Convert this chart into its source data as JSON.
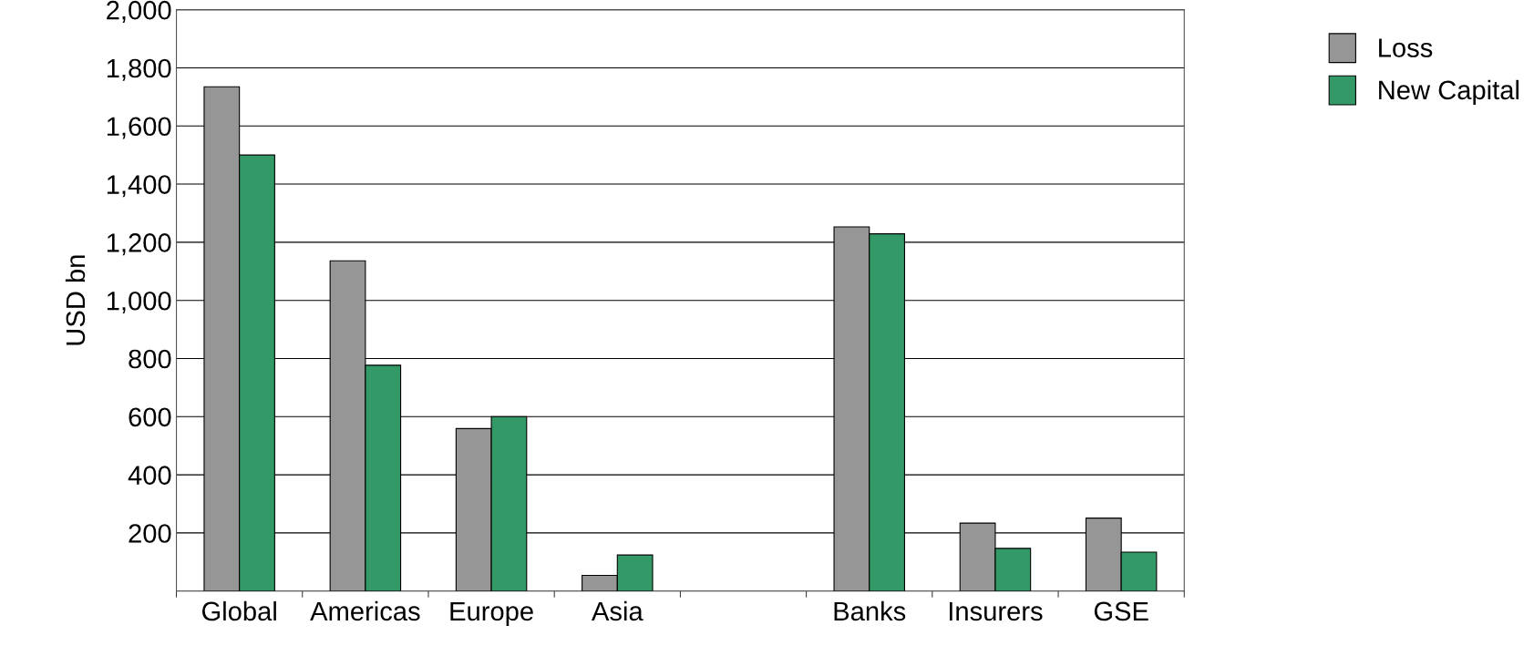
{
  "chart_data": {
    "type": "bar",
    "ylabel": "USD bn",
    "categories": [
      "Global",
      "Americas",
      "Europe",
      "Asia",
      null,
      "Banks",
      "Insurers",
      "GSE"
    ],
    "series": [
      {
        "name": "Loss",
        "color": "#969696",
        "values": [
          1735,
          1136,
          559,
          54,
          null,
          1253,
          234,
          251
        ]
      },
      {
        "name": "New Capital",
        "color": "#339966",
        "values": [
          1500,
          777,
          600,
          124,
          null,
          1229,
          147,
          134
        ]
      }
    ],
    "ylim": [
      0,
      2000
    ],
    "yticks": [
      {
        "value": 0,
        "label": null
      },
      200,
      400,
      600,
      800,
      {
        "value": 1000,
        "label": "1,000"
      },
      {
        "value": 1200,
        "label": "1,200"
      },
      {
        "value": 1400,
        "label": "1,400"
      },
      {
        "value": 1600,
        "label": "1,600"
      },
      {
        "value": 1800,
        "label": "1,800"
      },
      {
        "value": 2000,
        "label": "2,000"
      }
    ],
    "grid": "y",
    "legend": "top right"
  }
}
